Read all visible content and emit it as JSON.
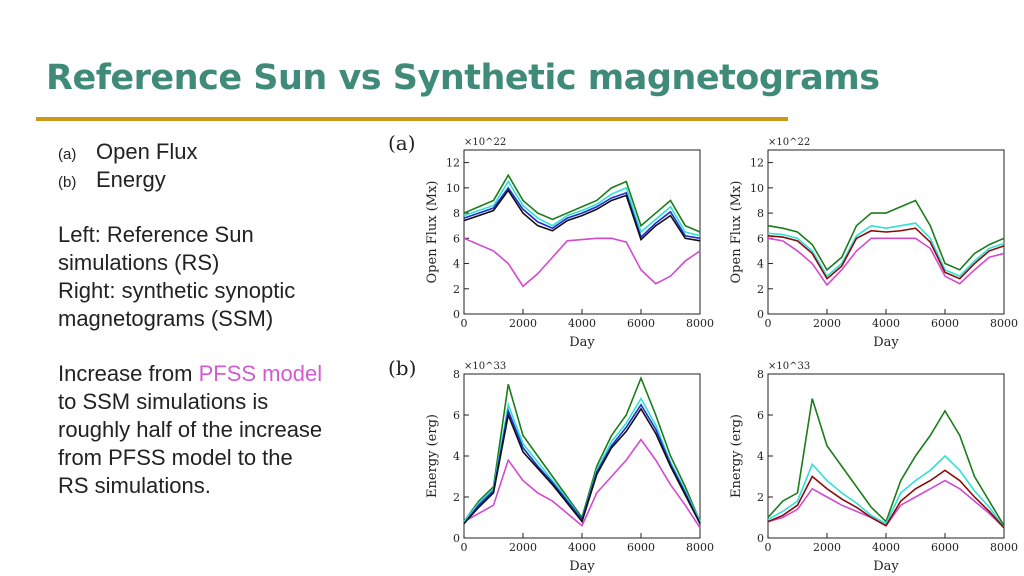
{
  "slide": {
    "title": "Reference Sun vs Synthetic magnetograms",
    "bullets": [
      {
        "label": "(a)",
        "text": "Open Flux"
      },
      {
        "label": "(b)",
        "text": "Energy"
      }
    ],
    "paragraph1": [
      "Left: Reference Sun",
      "simulations (RS)",
      "Right: synthetic synoptic",
      "magnetograms (SSM)"
    ],
    "paragraph2": {
      "prefix": "Increase from ",
      "highlight": "PFSS model",
      "lines": [
        "to SSM simulations is",
        "roughly half of the increase",
        "from PFSS model to the",
        "RS simulations."
      ]
    },
    "panel_labels": [
      "(a)",
      "(b)"
    ],
    "colors": {
      "title": "#3f8a78",
      "rule": "#c99a19",
      "highlight": "#d35ad1"
    }
  },
  "chart_data": [
    {
      "type": "line",
      "panel": "a-left",
      "ylabel": "Open Flux (Mx)",
      "xlabel": "Day",
      "multiplier": "×10^22",
      "xlim": [
        0,
        8000
      ],
      "ylim": [
        0,
        13
      ],
      "x": [
        0,
        500,
        1000,
        1500,
        2000,
        2500,
        3000,
        3500,
        4000,
        4500,
        5000,
        5500,
        6000,
        6500,
        7000,
        7500,
        8000
      ],
      "series": [
        {
          "color": "#d34ad0",
          "values": [
            6.0,
            5.5,
            5.0,
            4.0,
            2.2,
            3.2,
            4.5,
            5.8,
            5.9,
            6.0,
            6.0,
            5.7,
            3.5,
            2.4,
            3.0,
            4.2,
            5.0
          ]
        },
        {
          "color": "#1a7d1a",
          "values": [
            8.0,
            8.5,
            9.0,
            11.0,
            9.0,
            8.0,
            7.5,
            8.0,
            8.5,
            9.0,
            10.0,
            10.5,
            7.0,
            8.0,
            9.0,
            7.0,
            6.5
          ]
        },
        {
          "color": "#2de0d8",
          "values": [
            7.8,
            8.2,
            8.6,
            10.5,
            8.6,
            7.6,
            7.0,
            7.8,
            8.2,
            8.7,
            9.5,
            10.0,
            6.5,
            7.5,
            8.5,
            6.5,
            6.2
          ]
        },
        {
          "color": "#1c2ed0",
          "values": [
            7.6,
            8.0,
            8.4,
            10.0,
            8.3,
            7.3,
            6.8,
            7.6,
            8.0,
            8.5,
            9.2,
            9.6,
            6.1,
            7.2,
            8.1,
            6.2,
            6.0
          ]
        },
        {
          "color": "#111111",
          "values": [
            7.4,
            7.8,
            8.2,
            9.8,
            8.0,
            7.0,
            6.6,
            7.4,
            7.8,
            8.3,
            9.0,
            9.4,
            5.9,
            7.0,
            7.8,
            6.0,
            5.8
          ]
        }
      ]
    },
    {
      "type": "line",
      "panel": "a-right",
      "ylabel": "Open Flux (Mx)",
      "xlabel": "Day",
      "multiplier": "×10^22",
      "xlim": [
        0,
        8000
      ],
      "ylim": [
        0,
        13
      ],
      "x": [
        0,
        500,
        1000,
        1500,
        2000,
        2500,
        3000,
        3500,
        4000,
        4500,
        5000,
        5500,
        6000,
        6500,
        7000,
        7500,
        8000
      ],
      "series": [
        {
          "color": "#d34ad0",
          "values": [
            6.0,
            5.8,
            5.0,
            4.0,
            2.3,
            3.5,
            5.0,
            6.0,
            6.0,
            6.0,
            6.0,
            5.2,
            3.0,
            2.4,
            3.5,
            4.5,
            4.8
          ]
        },
        {
          "color": "#1a7d1a",
          "values": [
            7.0,
            6.8,
            6.5,
            5.5,
            3.5,
            4.5,
            7.0,
            8.0,
            8.0,
            8.5,
            9.0,
            7.0,
            4.0,
            3.5,
            4.8,
            5.5,
            6.0
          ]
        },
        {
          "color": "#2de0d8",
          "values": [
            6.4,
            6.3,
            6.0,
            5.0,
            3.0,
            4.0,
            6.2,
            7.0,
            6.8,
            7.0,
            7.2,
            6.0,
            3.5,
            3.0,
            4.2,
            5.2,
            5.6
          ]
        },
        {
          "color": "#8b0a0a",
          "values": [
            6.2,
            6.1,
            5.8,
            4.8,
            2.8,
            3.8,
            6.0,
            6.6,
            6.5,
            6.6,
            6.8,
            5.7,
            3.3,
            2.8,
            4.0,
            5.0,
            5.4
          ]
        }
      ]
    },
    {
      "type": "line",
      "panel": "b-left",
      "ylabel": "Energy (erg)",
      "xlabel": "Day",
      "multiplier": "×10^33",
      "xlim": [
        0,
        8000
      ],
      "ylim": [
        0,
        8
      ],
      "x": [
        0,
        500,
        1000,
        1500,
        2000,
        2500,
        3000,
        3500,
        4000,
        4500,
        5000,
        5500,
        6000,
        6500,
        7000,
        7500,
        8000
      ],
      "series": [
        {
          "color": "#d34ad0",
          "values": [
            0.8,
            1.2,
            1.6,
            3.8,
            2.8,
            2.2,
            1.8,
            1.2,
            0.6,
            2.2,
            3.0,
            3.8,
            4.8,
            3.8,
            2.6,
            1.6,
            0.5
          ]
        },
        {
          "color": "#1a7d1a",
          "values": [
            0.8,
            1.8,
            2.5,
            7.5,
            5.0,
            4.0,
            3.0,
            2.0,
            1.0,
            3.5,
            5.0,
            6.0,
            7.8,
            6.0,
            4.0,
            2.5,
            0.8
          ]
        },
        {
          "color": "#2de0d8",
          "values": [
            0.8,
            1.7,
            2.4,
            6.5,
            4.6,
            3.7,
            2.8,
            1.9,
            0.9,
            3.3,
            4.7,
            5.6,
            6.8,
            5.5,
            3.7,
            2.3,
            0.8
          ]
        },
        {
          "color": "#1c2ed0",
          "values": [
            0.7,
            1.6,
            2.3,
            6.2,
            4.4,
            3.5,
            2.7,
            1.8,
            0.9,
            3.2,
            4.5,
            5.4,
            6.5,
            5.3,
            3.6,
            2.2,
            0.7
          ]
        },
        {
          "color": "#111111",
          "values": [
            0.7,
            1.5,
            2.2,
            6.0,
            4.2,
            3.4,
            2.6,
            1.7,
            0.8,
            3.1,
            4.4,
            5.2,
            6.3,
            5.1,
            3.5,
            2.1,
            0.7
          ]
        }
      ]
    },
    {
      "type": "line",
      "panel": "b-right",
      "ylabel": "Energy (erg)",
      "xlabel": "Day",
      "multiplier": "×10^33",
      "xlim": [
        0,
        8000
      ],
      "ylim": [
        0,
        8
      ],
      "x": [
        0,
        500,
        1000,
        1500,
        2000,
        2500,
        3000,
        3500,
        4000,
        4500,
        5000,
        5500,
        6000,
        6500,
        7000,
        7500,
        8000
      ],
      "series": [
        {
          "color": "#d34ad0",
          "values": [
            0.8,
            1.0,
            1.4,
            2.4,
            2.0,
            1.6,
            1.3,
            1.0,
            0.6,
            1.6,
            2.0,
            2.4,
            2.8,
            2.4,
            1.8,
            1.2,
            0.5
          ]
        },
        {
          "color": "#1a7d1a",
          "values": [
            1.0,
            1.8,
            2.2,
            6.8,
            4.5,
            3.5,
            2.5,
            1.5,
            0.8,
            2.8,
            4.0,
            5.0,
            6.2,
            5.0,
            3.0,
            1.8,
            0.6
          ]
        },
        {
          "color": "#2de0d8",
          "values": [
            0.9,
            1.3,
            1.8,
            3.6,
            2.8,
            2.2,
            1.7,
            1.1,
            0.7,
            2.2,
            2.8,
            3.3,
            4.0,
            3.3,
            2.3,
            1.5,
            0.5
          ]
        },
        {
          "color": "#8b0a0a",
          "values": [
            0.8,
            1.1,
            1.6,
            3.0,
            2.4,
            1.9,
            1.5,
            1.0,
            0.6,
            1.8,
            2.4,
            2.8,
            3.3,
            2.8,
            2.0,
            1.3,
            0.5
          ]
        }
      ]
    }
  ]
}
